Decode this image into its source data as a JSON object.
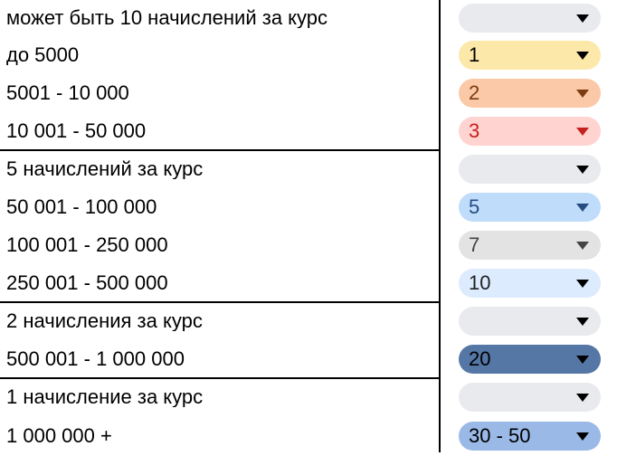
{
  "rows": [
    {
      "label": "может быть 10 начислений за курс",
      "value": ""
    },
    {
      "label": "до 5000",
      "value": "1"
    },
    {
      "label": "5001 - 10 000",
      "value": "2"
    },
    {
      "label": "10 001 - 50 000",
      "value": "3"
    },
    {
      "label": "5 начислений за курс",
      "value": ""
    },
    {
      "label": "50 001 - 100 000",
      "value": "5"
    },
    {
      "label": "100 001 - 250 000",
      "value": "7"
    },
    {
      "label": "250 001 - 500 000",
      "value": "10"
    },
    {
      "label": "2 начисления за курс",
      "value": ""
    },
    {
      "label": "500 001 - 1 000 000",
      "value": "20"
    },
    {
      "label": "1 начисление за курс",
      "value": ""
    },
    {
      "label": "1 000 000 +",
      "value": "30 - 50"
    }
  ],
  "colors": {
    "chip_empty": "#e8eaed",
    "chip_1": "#fce8a9",
    "chip_2": "#fbc9a8",
    "chip_3": "#ffd3d0",
    "chip_5": "#bfdcfb",
    "chip_7": "#e3e3e3",
    "chip_10": "#dcebfe",
    "chip_20": "#5477a6",
    "chip_30_50": "#9ab9e7",
    "border": "#000000"
  },
  "icons": {
    "dropdown": "triangle-down-icon"
  }
}
